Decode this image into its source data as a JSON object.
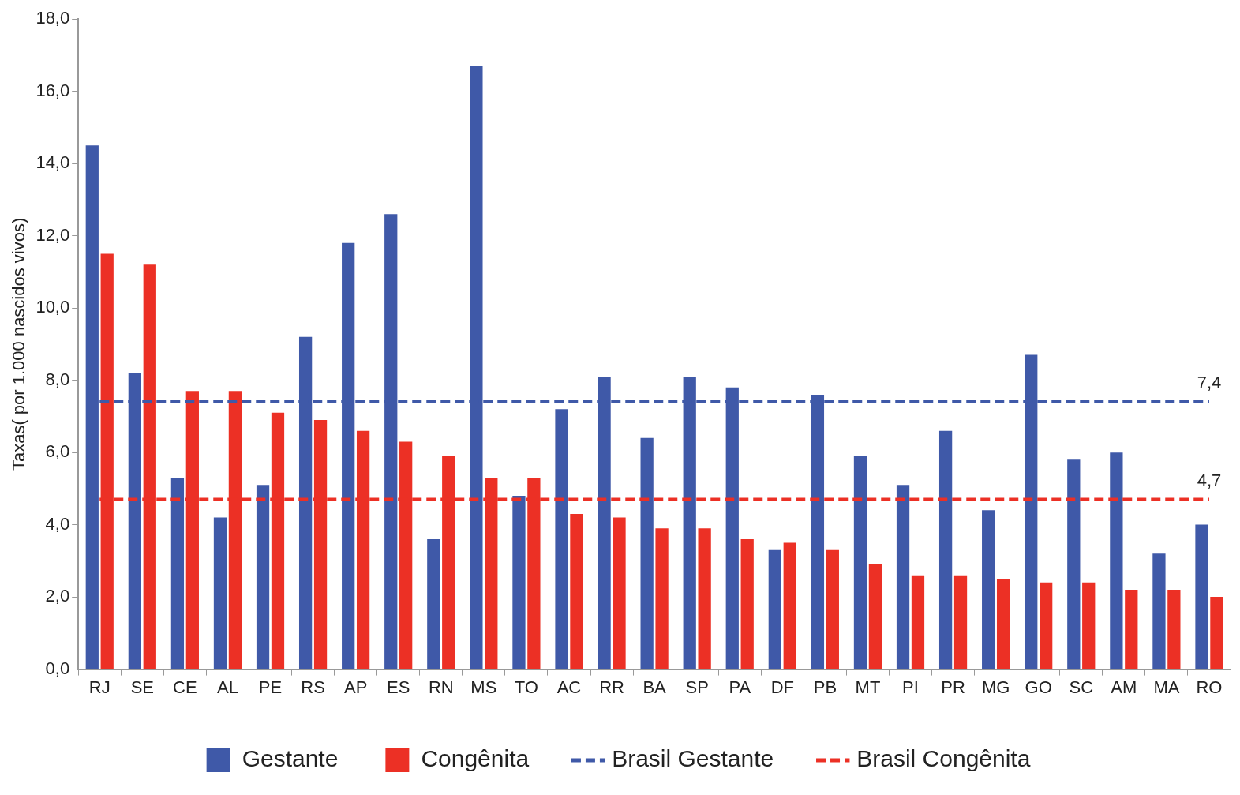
{
  "chart_data": {
    "type": "bar",
    "ylabel": "Taxas( por 1.000 nascidos vivos)",
    "categories": [
      "RJ",
      "SE",
      "CE",
      "AL",
      "PE",
      "RS",
      "AP",
      "ES",
      "RN",
      "MS",
      "TO",
      "AC",
      "RR",
      "BA",
      "SP",
      "PA",
      "DF",
      "PB",
      "MT",
      "PI",
      "PR",
      "MG",
      "GO",
      "SC",
      "AM",
      "MA",
      "RO"
    ],
    "series": [
      {
        "name": "Gestante",
        "color": "#3f59a8",
        "values": [
          14.5,
          8.2,
          5.3,
          4.2,
          5.1,
          9.2,
          11.8,
          12.6,
          3.6,
          16.7,
          4.8,
          7.2,
          8.1,
          6.4,
          8.1,
          7.8,
          3.3,
          7.6,
          5.9,
          5.1,
          6.6,
          4.4,
          8.7,
          5.8,
          6.0,
          3.2,
          4.0
        ]
      },
      {
        "name": "Congênita",
        "color": "#ec3025",
        "values": [
          11.5,
          11.2,
          7.7,
          7.7,
          7.1,
          6.9,
          6.6,
          6.3,
          5.9,
          5.3,
          5.3,
          4.3,
          4.2,
          3.9,
          3.9,
          3.6,
          3.5,
          3.3,
          2.9,
          2.6,
          2.6,
          2.5,
          2.4,
          2.4,
          2.2,
          2.2,
          2.0
        ]
      },
      {
        "name": "Brasil Gestante",
        "type": "line",
        "color": "#3f59a8",
        "line_style": "dashed",
        "marker": "none",
        "values": [
          7.4,
          7.4,
          7.4,
          7.4,
          7.4,
          7.4,
          7.4,
          7.4,
          7.4,
          7.4,
          7.4,
          7.4,
          7.4,
          7.4,
          7.4,
          7.4,
          7.4,
          7.4,
          7.4,
          7.4,
          7.4,
          7.4,
          7.4,
          7.4,
          7.4,
          7.4,
          7.4
        ]
      },
      {
        "name": "Brasil Congênita",
        "type": "line",
        "color": "#ec3025",
        "line_style": "dashed",
        "marker": "none",
        "values": [
          4.7,
          4.7,
          4.7,
          4.7,
          4.7,
          4.7,
          4.7,
          4.7,
          4.7,
          4.7,
          4.7,
          4.7,
          4.7,
          4.7,
          4.7,
          4.7,
          4.7,
          4.7,
          4.7,
          4.7,
          4.7,
          4.7,
          4.7,
          4.7,
          4.7,
          4.7,
          4.7
        ]
      }
    ],
    "annotations": [
      {
        "text": "7,4",
        "x": "RO",
        "y": 7.4
      },
      {
        "text": "4,7",
        "x": "RO",
        "y": 4.7
      }
    ],
    "ylim": [
      0,
      18
    ],
    "yticks": [
      {
        "value": 0,
        "label": "0,0"
      },
      {
        "value": 2,
        "label": "2,0"
      },
      {
        "value": 4,
        "label": "4,0"
      },
      {
        "value": 6,
        "label": "6,0"
      },
      {
        "value": 8,
        "label": "8,0"
      },
      {
        "value": 10,
        "label": "10,0"
      },
      {
        "value": 12,
        "label": "12,0"
      },
      {
        "value": 14,
        "label": "14,0"
      },
      {
        "value": 16,
        "label": "16,0"
      },
      {
        "value": 18,
        "label": "18,0"
      }
    ],
    "grid": false,
    "legend": "bottom"
  }
}
